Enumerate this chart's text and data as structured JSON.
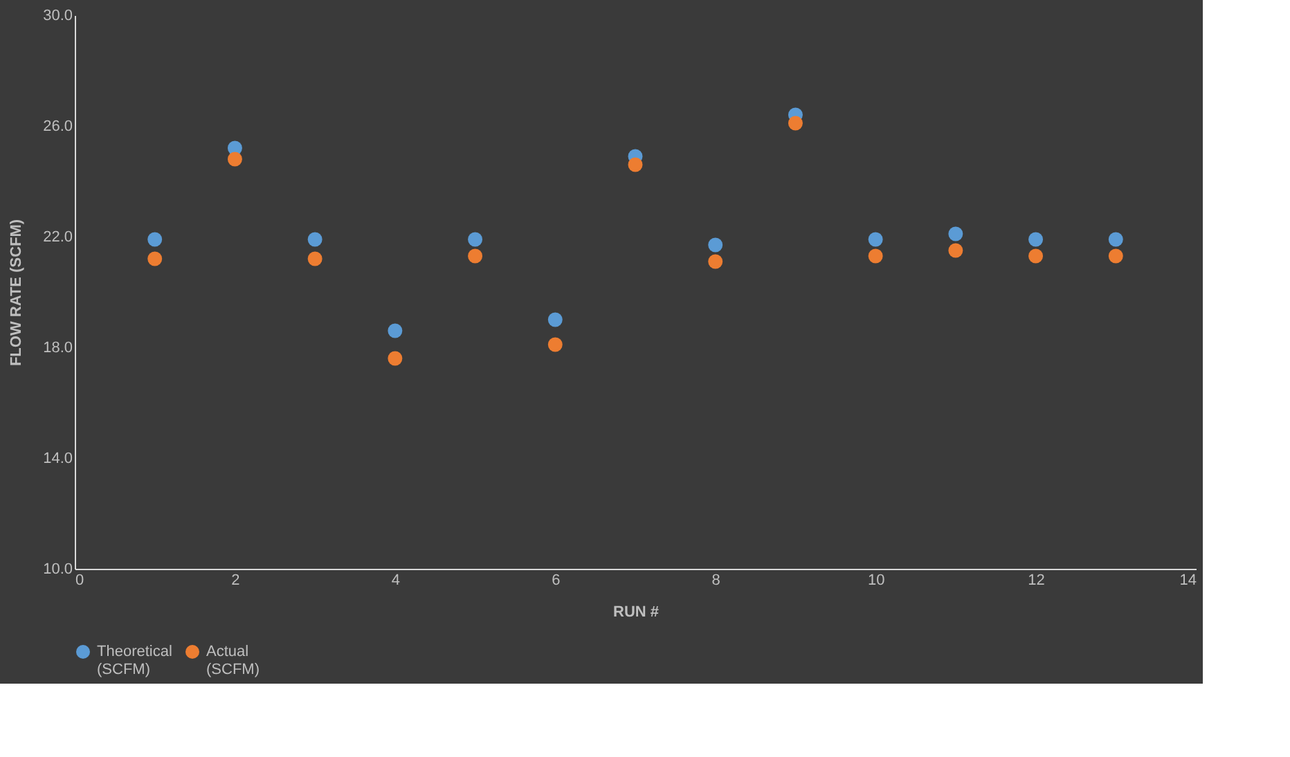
{
  "chart_data": {
    "type": "scatter",
    "xlabel": "RUN #",
    "ylabel": "FLOW RATE (SCFM)",
    "x": [
      1,
      2,
      3,
      4,
      5,
      6,
      7,
      8,
      9,
      10,
      11,
      12,
      13
    ],
    "series": [
      {
        "name": "Theoretical (SCFM)",
        "color": "#5b9bd5",
        "values": [
          21.9,
          25.2,
          21.9,
          18.6,
          21.9,
          19.0,
          24.9,
          21.7,
          26.4,
          21.9,
          22.1,
          21.9,
          21.9
        ]
      },
      {
        "name": "Actual (SCFM)",
        "color": "#ed7d31",
        "values": [
          21.2,
          24.8,
          21.2,
          17.6,
          21.3,
          18.1,
          24.6,
          21.1,
          26.1,
          21.3,
          21.5,
          21.3,
          21.3
        ]
      }
    ],
    "xlim": [
      0,
      14
    ],
    "xticks": [
      0,
      2,
      4,
      6,
      8,
      10,
      12,
      14
    ],
    "ylim": [
      10,
      30
    ],
    "yticks": [
      {
        "value": 10,
        "label": "10.0"
      },
      {
        "value": 14,
        "label": "14.0"
      },
      {
        "value": 18,
        "label": "18.0"
      },
      {
        "value": 22,
        "label": "22.0"
      },
      {
        "value": 26,
        "label": "26.0"
      },
      {
        "value": 30,
        "label": "30.0"
      }
    ],
    "grid": false,
    "legend": "bottom",
    "marker": "circle"
  }
}
